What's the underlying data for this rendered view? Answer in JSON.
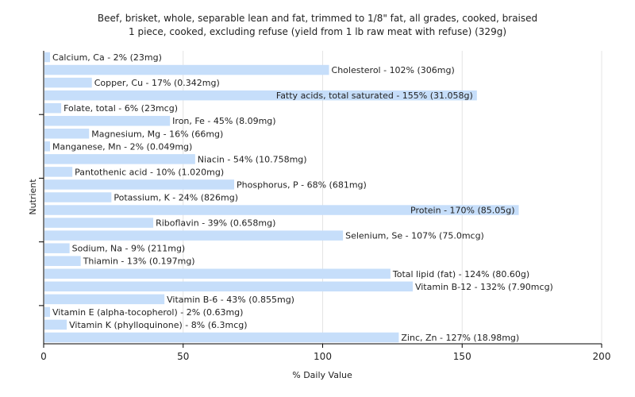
{
  "chart_data": {
    "type": "bar",
    "orientation": "horizontal",
    "title": "Beef, brisket, whole, separable lean and fat, trimmed to 1/8\" fat, all grades, cooked, braised",
    "subtitle": "1 piece, cooked, excluding refuse (yield from 1 lb raw meat with refuse) (329g)",
    "xlabel": "% Daily Value",
    "ylabel": "Nutrient",
    "xlim": [
      0,
      200
    ],
    "xticks": [
      0,
      50,
      100,
      150,
      200
    ],
    "grid": true,
    "bar_color": "#c6defa",
    "categories": [
      "Calcium, Ca - 2% (23mg)",
      "Cholesterol - 102% (306mg)",
      "Copper, Cu - 17% (0.342mg)",
      "Fatty acids, total saturated - 155% (31.058g)",
      "Folate, total - 6% (23mcg)",
      "Iron, Fe - 45% (8.09mg)",
      "Magnesium, Mg - 16% (66mg)",
      "Manganese, Mn - 2% (0.049mg)",
      "Niacin - 54% (10.758mg)",
      "Pantothenic acid - 10% (1.020mg)",
      "Phosphorus, P - 68% (681mg)",
      "Potassium, K - 24% (826mg)",
      "Protein - 170% (85.05g)",
      "Riboflavin - 39% (0.658mg)",
      "Selenium, Se - 107% (75.0mcg)",
      "Sodium, Na - 9% (211mg)",
      "Thiamin - 13% (0.197mg)",
      "Total lipid (fat) - 124% (80.60g)",
      "Vitamin B-12 - 132% (7.90mcg)",
      "Vitamin B-6 - 43% (0.855mg)",
      "Vitamin E (alpha-tocopherol) - 2% (0.63mg)",
      "Vitamin K (phylloquinone) - 8% (6.3mcg)",
      "Zinc, Zn - 127% (18.98mg)"
    ],
    "values": [
      2,
      102,
      17,
      155,
      6,
      45,
      16,
      2,
      54,
      10,
      68,
      24,
      170,
      39,
      107,
      9,
      13,
      124,
      132,
      43,
      2,
      8,
      127
    ]
  }
}
